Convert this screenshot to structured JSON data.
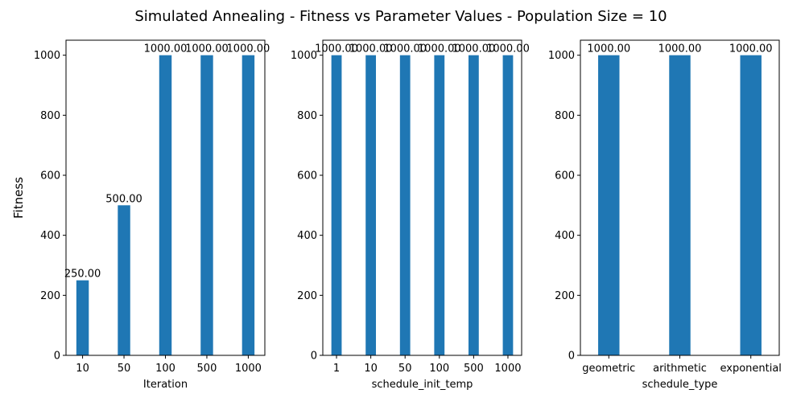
{
  "figure": {
    "title": "Simulated Annealing - Fitness vs Parameter Values - Population Size = 10"
  },
  "colors": {
    "bar": "#1f77b4",
    "axis": "#000000",
    "background": "#ffffff"
  },
  "chart_data": [
    {
      "type": "bar",
      "title": "",
      "xlabel": "Iteration",
      "ylabel": "Fitness",
      "categories": [
        "10",
        "50",
        "100",
        "500",
        "1000"
      ],
      "values": [
        250,
        500,
        1000,
        1000,
        1000
      ],
      "value_labels": [
        "250.00",
        "500.00",
        "1000.00",
        "1000.00",
        "1000.00"
      ],
      "ylim": [
        0,
        1050
      ],
      "yticks": [
        0,
        200,
        400,
        600,
        800,
        1000
      ],
      "grid": false
    },
    {
      "type": "bar",
      "title": "",
      "xlabel": "schedule_init_temp",
      "ylabel": "",
      "categories": [
        "1",
        "10",
        "50",
        "100",
        "500",
        "1000"
      ],
      "values": [
        1000,
        1000,
        1000,
        1000,
        1000,
        1000
      ],
      "value_labels": [
        "1000.00",
        "1000.00",
        "1000.00",
        "1000.00",
        "1000.00",
        "1000.00"
      ],
      "ylim": [
        0,
        1050
      ],
      "yticks": [
        0,
        200,
        400,
        600,
        800,
        1000
      ],
      "grid": false
    },
    {
      "type": "bar",
      "title": "",
      "xlabel": "schedule_type",
      "ylabel": "",
      "categories": [
        "geometric",
        "arithmetic",
        "exponential"
      ],
      "values": [
        1000,
        1000,
        1000
      ],
      "value_labels": [
        "1000.00",
        "1000.00",
        "1000.00"
      ],
      "ylim": [
        0,
        1050
      ],
      "yticks": [
        0,
        200,
        400,
        600,
        800,
        1000
      ],
      "grid": false
    }
  ]
}
